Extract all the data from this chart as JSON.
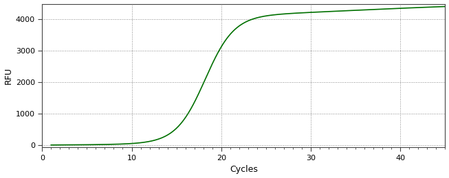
{
  "title": "",
  "xlabel": "Cycles",
  "ylabel": "RFU",
  "line_color": "#007000",
  "line_width": 1.2,
  "background_color": "#ffffff",
  "grid_color": "#888888",
  "grid_linestyle": ":",
  "grid_linewidth": 0.7,
  "xlim": [
    0,
    45
  ],
  "ylim": [
    -80,
    4500
  ],
  "xticks": [
    0,
    10,
    20,
    30,
    40
  ],
  "yticks": [
    0,
    1000,
    2000,
    3000,
    4000
  ],
  "sigmoid_L": 4050,
  "sigmoid_k": 0.62,
  "sigmoid_x0": 18.2,
  "slow_rise_L": 520,
  "slow_rise_k": 0.1,
  "slow_rise_x0": 35,
  "x_start": 1,
  "x_end": 45,
  "figsize": [
    6.53,
    2.6
  ],
  "dpi": 100,
  "spine_color": "#444444",
  "tick_color": "#000000",
  "tick_label_color": "#000000",
  "xlabel_fontsize": 9,
  "ylabel_fontsize": 9,
  "tick_fontsize": 8
}
